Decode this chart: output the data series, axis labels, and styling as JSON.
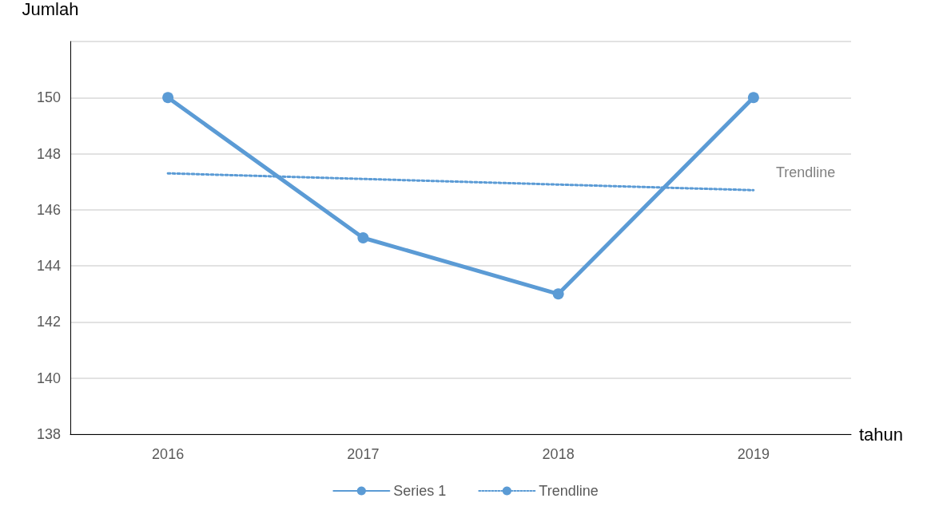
{
  "chart_data": {
    "type": "line",
    "xlabel": "tahun",
    "ylabel": "Jumlah",
    "categories": [
      "2016",
      "2017",
      "2018",
      "2019"
    ],
    "series": [
      {
        "name": "Series 1",
        "color": "#5b9bd5",
        "values": [
          150,
          145,
          143,
          150
        ],
        "marker": "circle",
        "line_style": "solid"
      },
      {
        "name": "Trendline",
        "color": "#5b9bd5",
        "values": [
          147.3,
          147.1,
          146.9,
          146.7
        ],
        "marker": "none",
        "line_style": "dotted"
      }
    ],
    "ylim": [
      138,
      152
    ],
    "yticks": [
      138,
      140,
      142,
      144,
      146,
      148,
      150,
      {
        "value": 152,
        "label": null
      }
    ],
    "grid": "y",
    "legend": "bottom"
  }
}
